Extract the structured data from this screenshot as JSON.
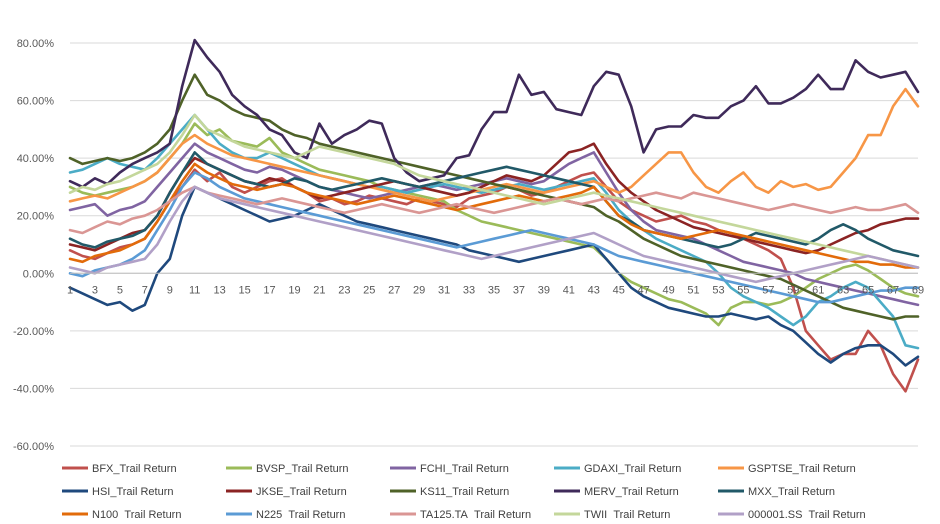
{
  "chart_data": {
    "type": "line",
    "title": "",
    "xlabel": "",
    "ylabel": "",
    "x": [
      1,
      2,
      3,
      4,
      5,
      6,
      7,
      8,
      9,
      10,
      11,
      12,
      13,
      14,
      15,
      16,
      17,
      18,
      19,
      20,
      21,
      22,
      23,
      24,
      25,
      26,
      27,
      28,
      29,
      30,
      31,
      32,
      33,
      34,
      35,
      36,
      37,
      38,
      39,
      40,
      41,
      42,
      43,
      44,
      45,
      46,
      47,
      48,
      49,
      50,
      51,
      52,
      53,
      54,
      55,
      56,
      57,
      58,
      59,
      60,
      61,
      62,
      63,
      64,
      65,
      66,
      67,
      68,
      69
    ],
    "x_tick_labels": [
      "1",
      "3",
      "5",
      "7",
      "9",
      "11",
      "13",
      "15",
      "17",
      "19",
      "21",
      "23",
      "25",
      "27",
      "29",
      "31",
      "33",
      "35",
      "37",
      "39",
      "41",
      "43",
      "45",
      "47",
      "49",
      "51",
      "53",
      "55",
      "57",
      "59",
      "61",
      "63",
      "65",
      "67",
      "69"
    ],
    "y_tick_labels": [
      "80.00%",
      "60.00%",
      "40.00%",
      "20.00%",
      "0.00%",
      "-20.00%",
      "-40.00%",
      "-60.00%"
    ],
    "ylim": [
      -0.6,
      0.8
    ],
    "y_format": "percent",
    "grid": "horizontal",
    "legend_position": "bottom",
    "series": [
      {
        "name": "BFX_Trail Return",
        "color": "#C0504D",
        "values": [
          0.08,
          0.06,
          0.05,
          0.07,
          0.09,
          0.1,
          0.12,
          0.18,
          0.25,
          0.3,
          0.36,
          0.32,
          0.35,
          0.3,
          0.28,
          0.3,
          0.32,
          0.33,
          0.3,
          0.28,
          0.25,
          0.26,
          0.24,
          0.25,
          0.27,
          0.26,
          0.25,
          0.24,
          0.26,
          0.25,
          0.24,
          0.23,
          0.26,
          0.27,
          0.28,
          0.3,
          0.29,
          0.27,
          0.28,
          0.3,
          0.32,
          0.34,
          0.35,
          0.3,
          0.25,
          0.22,
          0.2,
          0.18,
          0.19,
          0.2,
          0.18,
          0.17,
          0.15,
          0.14,
          0.12,
          0.1,
          0.08,
          0.05,
          -0.05,
          -0.2,
          -0.25,
          -0.3,
          -0.28,
          -0.28,
          -0.2,
          -0.25,
          -0.35,
          -0.41,
          -0.3
        ]
      },
      {
        "name": "BVSP_Trail Return",
        "color": "#9BBB59",
        "values": [
          0.3,
          0.28,
          0.27,
          0.28,
          0.29,
          0.3,
          0.32,
          0.35,
          0.4,
          0.45,
          0.52,
          0.48,
          0.5,
          0.46,
          0.45,
          0.44,
          0.47,
          0.42,
          0.4,
          0.38,
          0.36,
          0.35,
          0.34,
          0.33,
          0.32,
          0.3,
          0.29,
          0.28,
          0.27,
          0.26,
          0.25,
          0.22,
          0.2,
          0.18,
          0.17,
          0.16,
          0.15,
          0.14,
          0.13,
          0.12,
          0.11,
          0.1,
          0.09,
          0.05,
          0.0,
          -0.03,
          -0.05,
          -0.07,
          -0.09,
          -0.1,
          -0.12,
          -0.14,
          -0.18,
          -0.12,
          -0.1,
          -0.1,
          -0.11,
          -0.1,
          -0.08,
          -0.05,
          -0.02,
          0.0,
          0.02,
          0.03,
          0.01,
          -0.02,
          -0.05,
          -0.07,
          -0.08
        ]
      },
      {
        "name": "FCHI_Trail Return",
        "color": "#8064A2",
        "values": [
          0.22,
          0.23,
          0.24,
          0.2,
          0.22,
          0.23,
          0.25,
          0.3,
          0.35,
          0.4,
          0.45,
          0.42,
          0.4,
          0.38,
          0.36,
          0.35,
          0.37,
          0.36,
          0.34,
          0.32,
          0.3,
          0.29,
          0.28,
          0.27,
          0.26,
          0.27,
          0.28,
          0.29,
          0.3,
          0.31,
          0.3,
          0.29,
          0.3,
          0.31,
          0.32,
          0.33,
          0.32,
          0.31,
          0.32,
          0.35,
          0.38,
          0.4,
          0.42,
          0.35,
          0.28,
          0.22,
          0.18,
          0.15,
          0.14,
          0.13,
          0.12,
          0.1,
          0.08,
          0.06,
          0.04,
          0.03,
          0.02,
          0.01,
          0.0,
          -0.02,
          -0.03,
          -0.04,
          -0.05,
          -0.06,
          -0.07,
          -0.08,
          -0.09,
          -0.1,
          -0.11
        ]
      },
      {
        "name": "GDAXI_Trail Return",
        "color": "#4BACC6",
        "values": [
          0.35,
          0.36,
          0.38,
          0.4,
          0.38,
          0.37,
          0.36,
          0.4,
          0.45,
          0.5,
          0.55,
          0.5,
          0.45,
          0.42,
          0.4,
          0.4,
          0.42,
          0.4,
          0.38,
          0.36,
          0.34,
          0.33,
          0.32,
          0.31,
          0.3,
          0.3,
          0.29,
          0.28,
          0.29,
          0.3,
          0.31,
          0.3,
          0.29,
          0.28,
          0.29,
          0.3,
          0.31,
          0.3,
          0.29,
          0.3,
          0.31,
          0.32,
          0.33,
          0.28,
          0.22,
          0.18,
          0.15,
          0.12,
          0.1,
          0.08,
          0.06,
          0.04,
          0.0,
          -0.05,
          -0.08,
          -0.1,
          -0.12,
          -0.15,
          -0.18,
          -0.15,
          -0.1,
          -0.08,
          -0.05,
          -0.03,
          -0.05,
          -0.1,
          -0.15,
          -0.25,
          -0.26
        ]
      },
      {
        "name": "GSPTSE_Trail Return",
        "color": "#F79646",
        "values": [
          0.25,
          0.26,
          0.27,
          0.26,
          0.28,
          0.3,
          0.32,
          0.35,
          0.4,
          0.45,
          0.48,
          0.45,
          0.43,
          0.41,
          0.4,
          0.39,
          0.38,
          0.37,
          0.36,
          0.35,
          0.34,
          0.33,
          0.32,
          0.31,
          0.3,
          0.29,
          0.28,
          0.27,
          0.26,
          0.25,
          0.26,
          0.27,
          0.28,
          0.29,
          0.3,
          0.31,
          0.3,
          0.29,
          0.28,
          0.29,
          0.3,
          0.31,
          0.32,
          0.3,
          0.28,
          0.3,
          0.34,
          0.38,
          0.42,
          0.42,
          0.35,
          0.3,
          0.28,
          0.32,
          0.35,
          0.3,
          0.28,
          0.32,
          0.3,
          0.31,
          0.29,
          0.3,
          0.35,
          0.4,
          0.48,
          0.48,
          0.58,
          0.64,
          0.58
        ]
      },
      {
        "name": "HSI_Trail Return",
        "color": "#1F497D",
        "values": [
          -0.05,
          -0.07,
          -0.09,
          -0.11,
          -0.1,
          -0.13,
          -0.11,
          0.0,
          0.05,
          0.2,
          0.3,
          0.28,
          0.26,
          0.24,
          0.22,
          0.2,
          0.18,
          0.19,
          0.2,
          0.22,
          0.24,
          0.22,
          0.2,
          0.18,
          0.17,
          0.16,
          0.15,
          0.14,
          0.13,
          0.12,
          0.11,
          0.1,
          0.08,
          0.07,
          0.06,
          0.05,
          0.04,
          0.05,
          0.06,
          0.07,
          0.08,
          0.09,
          0.1,
          0.05,
          0.0,
          -0.05,
          -0.08,
          -0.1,
          -0.12,
          -0.13,
          -0.14,
          -0.15,
          -0.15,
          -0.14,
          -0.15,
          -0.16,
          -0.15,
          -0.18,
          -0.2,
          -0.24,
          -0.28,
          -0.31,
          -0.28,
          -0.26,
          -0.25,
          -0.25,
          -0.28,
          -0.32,
          -0.29
        ]
      },
      {
        "name": "JKSE_Trail Return",
        "color": "#8B2323",
        "values": [
          0.1,
          0.09,
          0.08,
          0.1,
          0.12,
          0.14,
          0.15,
          0.2,
          0.28,
          0.35,
          0.4,
          0.38,
          0.36,
          0.34,
          0.32,
          0.31,
          0.33,
          0.32,
          0.3,
          0.28,
          0.26,
          0.27,
          0.28,
          0.29,
          0.3,
          0.31,
          0.32,
          0.31,
          0.3,
          0.29,
          0.28,
          0.27,
          0.28,
          0.3,
          0.32,
          0.34,
          0.33,
          0.32,
          0.34,
          0.38,
          0.42,
          0.43,
          0.45,
          0.38,
          0.32,
          0.28,
          0.25,
          0.22,
          0.2,
          0.18,
          0.16,
          0.15,
          0.14,
          0.13,
          0.12,
          0.11,
          0.1,
          0.09,
          0.08,
          0.07,
          0.08,
          0.1,
          0.12,
          0.14,
          0.15,
          0.17,
          0.18,
          0.19,
          0.19
        ]
      },
      {
        "name": "KS11_Trail Return",
        "color": "#4F6228",
        "values": [
          0.4,
          0.38,
          0.39,
          0.4,
          0.39,
          0.4,
          0.42,
          0.45,
          0.5,
          0.6,
          0.69,
          0.62,
          0.6,
          0.57,
          0.55,
          0.54,
          0.53,
          0.5,
          0.48,
          0.47,
          0.45,
          0.44,
          0.43,
          0.42,
          0.41,
          0.4,
          0.39,
          0.38,
          0.37,
          0.36,
          0.35,
          0.34,
          0.33,
          0.32,
          0.31,
          0.3,
          0.29,
          0.28,
          0.27,
          0.26,
          0.25,
          0.24,
          0.23,
          0.2,
          0.18,
          0.15,
          0.12,
          0.1,
          0.08,
          0.06,
          0.05,
          0.04,
          0.03,
          0.02,
          0.01,
          0.0,
          -0.01,
          -0.02,
          -0.04,
          -0.06,
          -0.08,
          -0.1,
          -0.12,
          -0.13,
          -0.14,
          -0.15,
          -0.16,
          -0.15,
          -0.15
        ]
      },
      {
        "name": "MERV_Trail Return",
        "color": "#3F2A5A",
        "values": [
          0.32,
          0.3,
          0.33,
          0.31,
          0.35,
          0.38,
          0.4,
          0.42,
          0.45,
          0.65,
          0.81,
          0.75,
          0.7,
          0.62,
          0.58,
          0.55,
          0.5,
          0.48,
          0.42,
          0.4,
          0.52,
          0.45,
          0.48,
          0.5,
          0.53,
          0.52,
          0.4,
          0.35,
          0.32,
          0.33,
          0.34,
          0.4,
          0.41,
          0.5,
          0.56,
          0.56,
          0.69,
          0.62,
          0.63,
          0.57,
          0.56,
          0.55,
          0.65,
          0.7,
          0.69,
          0.58,
          0.42,
          0.5,
          0.51,
          0.51,
          0.55,
          0.54,
          0.54,
          0.58,
          0.6,
          0.65,
          0.59,
          0.59,
          0.61,
          0.64,
          0.69,
          0.64,
          0.64,
          0.74,
          0.7,
          0.68,
          0.69,
          0.7,
          0.63
        ]
      },
      {
        "name": "MXX_Trail Return",
        "color": "#215968",
        "values": [
          0.12,
          0.1,
          0.09,
          0.11,
          0.12,
          0.13,
          0.15,
          0.2,
          0.28,
          0.35,
          0.42,
          0.38,
          0.36,
          0.34,
          0.32,
          0.31,
          0.3,
          0.31,
          0.33,
          0.32,
          0.3,
          0.29,
          0.3,
          0.31,
          0.32,
          0.33,
          0.32,
          0.31,
          0.3,
          0.31,
          0.32,
          0.33,
          0.34,
          0.35,
          0.36,
          0.37,
          0.36,
          0.35,
          0.34,
          0.33,
          0.32,
          0.31,
          0.3,
          0.25,
          0.2,
          0.18,
          0.15,
          0.14,
          0.13,
          0.12,
          0.11,
          0.1,
          0.09,
          0.1,
          0.12,
          0.14,
          0.13,
          0.12,
          0.11,
          0.1,
          0.12,
          0.15,
          0.17,
          0.15,
          0.12,
          0.1,
          0.08,
          0.07,
          0.06
        ]
      },
      {
        "name": "N100_Trail Return",
        "color": "#E26B0A",
        "values": [
          0.05,
          0.04,
          0.06,
          0.07,
          0.08,
          0.1,
          0.12,
          0.18,
          0.25,
          0.32,
          0.38,
          0.35,
          0.33,
          0.31,
          0.3,
          0.29,
          0.3,
          0.31,
          0.3,
          0.28,
          0.27,
          0.26,
          0.25,
          0.24,
          0.25,
          0.26,
          0.27,
          0.26,
          0.25,
          0.24,
          0.23,
          0.22,
          0.23,
          0.24,
          0.25,
          0.26,
          0.27,
          0.26,
          0.25,
          0.26,
          0.27,
          0.28,
          0.3,
          0.25,
          0.2,
          0.17,
          0.15,
          0.14,
          0.13,
          0.12,
          0.13,
          0.14,
          0.15,
          0.14,
          0.13,
          0.12,
          0.11,
          0.1,
          0.09,
          0.08,
          0.07,
          0.06,
          0.05,
          0.04,
          0.04,
          0.03,
          0.03,
          0.02,
          0.02
        ]
      },
      {
        "name": "N225_Trail Return",
        "color": "#5B9BD5",
        "values": [
          0.0,
          -0.01,
          0.01,
          0.02,
          0.03,
          0.05,
          0.08,
          0.15,
          0.22,
          0.3,
          0.35,
          0.33,
          0.3,
          0.28,
          0.26,
          0.25,
          0.24,
          0.23,
          0.22,
          0.21,
          0.2,
          0.19,
          0.18,
          0.17,
          0.16,
          0.15,
          0.14,
          0.13,
          0.12,
          0.11,
          0.1,
          0.09,
          0.1,
          0.11,
          0.12,
          0.13,
          0.14,
          0.15,
          0.14,
          0.13,
          0.12,
          0.11,
          0.1,
          0.08,
          0.06,
          0.05,
          0.04,
          0.03,
          0.02,
          0.01,
          0.0,
          -0.01,
          -0.02,
          -0.03,
          -0.04,
          -0.05,
          -0.06,
          -0.07,
          -0.08,
          -0.09,
          -0.1,
          -0.1,
          -0.09,
          -0.08,
          -0.07,
          -0.06,
          -0.06,
          -0.05,
          -0.05
        ]
      },
      {
        "name": "TA125.TA_Trail Return",
        "color": "#DA9694",
        "values": [
          0.15,
          0.14,
          0.16,
          0.18,
          0.17,
          0.19,
          0.2,
          0.22,
          0.25,
          0.28,
          0.3,
          0.28,
          0.27,
          0.26,
          0.25,
          0.24,
          0.25,
          0.26,
          0.25,
          0.24,
          0.23,
          0.22,
          0.21,
          0.22,
          0.23,
          0.24,
          0.23,
          0.22,
          0.21,
          0.22,
          0.23,
          0.24,
          0.23,
          0.22,
          0.21,
          0.22,
          0.23,
          0.24,
          0.25,
          0.26,
          0.25,
          0.24,
          0.25,
          0.26,
          0.25,
          0.26,
          0.27,
          0.28,
          0.27,
          0.26,
          0.28,
          0.27,
          0.26,
          0.25,
          0.24,
          0.23,
          0.22,
          0.23,
          0.24,
          0.23,
          0.22,
          0.21,
          0.22,
          0.23,
          0.22,
          0.22,
          0.23,
          0.24,
          0.21
        ]
      },
      {
        "name": "TWII_Trail Return",
        "color": "#C4D79B",
        "values": [
          0.28,
          0.3,
          0.29,
          0.31,
          0.32,
          0.34,
          0.36,
          0.38,
          0.42,
          0.48,
          0.55,
          0.5,
          0.48,
          0.46,
          0.44,
          0.43,
          0.42,
          0.41,
          0.4,
          0.42,
          0.44,
          0.43,
          0.42,
          0.41,
          0.4,
          0.39,
          0.38,
          0.36,
          0.34,
          0.33,
          0.32,
          0.31,
          0.3,
          0.29,
          0.28,
          0.27,
          0.26,
          0.25,
          0.24,
          0.25,
          0.26,
          0.27,
          0.28,
          0.27,
          0.26,
          0.25,
          0.24,
          0.23,
          0.22,
          0.21,
          0.2,
          0.19,
          0.18,
          0.17,
          0.16,
          0.15,
          0.14,
          0.13,
          0.12,
          0.11,
          0.1,
          0.09,
          0.08,
          0.07,
          0.06,
          0.05,
          0.04,
          0.03,
          0.02
        ]
      },
      {
        "name": "000001.SS_Trail Return",
        "color": "#B1A0C7",
        "values": [
          0.02,
          0.01,
          0.0,
          0.02,
          0.03,
          0.04,
          0.05,
          0.1,
          0.18,
          0.25,
          0.3,
          0.28,
          0.26,
          0.25,
          0.24,
          0.23,
          0.22,
          0.21,
          0.2,
          0.19,
          0.18,
          0.17,
          0.16,
          0.15,
          0.14,
          0.13,
          0.12,
          0.11,
          0.1,
          0.09,
          0.08,
          0.07,
          0.06,
          0.05,
          0.06,
          0.07,
          0.08,
          0.09,
          0.1,
          0.11,
          0.12,
          0.13,
          0.14,
          0.12,
          0.1,
          0.08,
          0.06,
          0.05,
          0.04,
          0.03,
          0.02,
          0.01,
          0.0,
          -0.01,
          -0.02,
          -0.03,
          -0.02,
          -0.01,
          0.0,
          0.01,
          0.02,
          0.03,
          0.04,
          0.05,
          0.06,
          0.05,
          0.04,
          0.03,
          0.02
        ]
      }
    ]
  }
}
